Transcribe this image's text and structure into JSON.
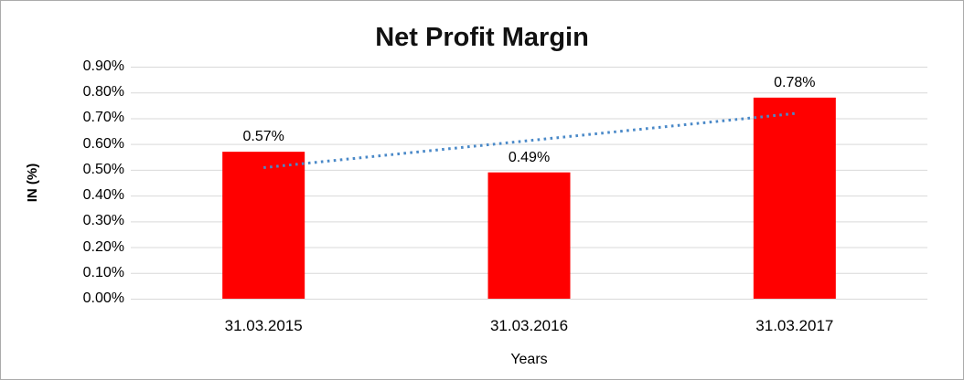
{
  "chart_data": {
    "type": "bar",
    "title": "Net Profit Margin",
    "xlabel": "Years",
    "ylabel": "IN (%)",
    "categories": [
      "31.03.2015",
      "31.03.2016",
      "31.03.2017"
    ],
    "values": [
      0.57,
      0.49,
      0.78
    ],
    "data_labels": [
      "0.57%",
      "0.49%",
      "0.78%"
    ],
    "ylim": [
      0,
      0.9
    ],
    "ytick_step": 0.1,
    "ytick_labels": [
      "0.00%",
      "0.10%",
      "0.20%",
      "0.30%",
      "0.40%",
      "0.50%",
      "0.60%",
      "0.70%",
      "0.80%",
      "0.90%"
    ],
    "grid": true,
    "legend": "none",
    "colors": {
      "bar": "#FF0000",
      "trendline": "#4A89C8",
      "gridline": "#D9D9D9",
      "text": "#000000",
      "background": "#FFFFFF"
    },
    "trendline": {
      "type": "linear",
      "style": "dotted"
    }
  }
}
